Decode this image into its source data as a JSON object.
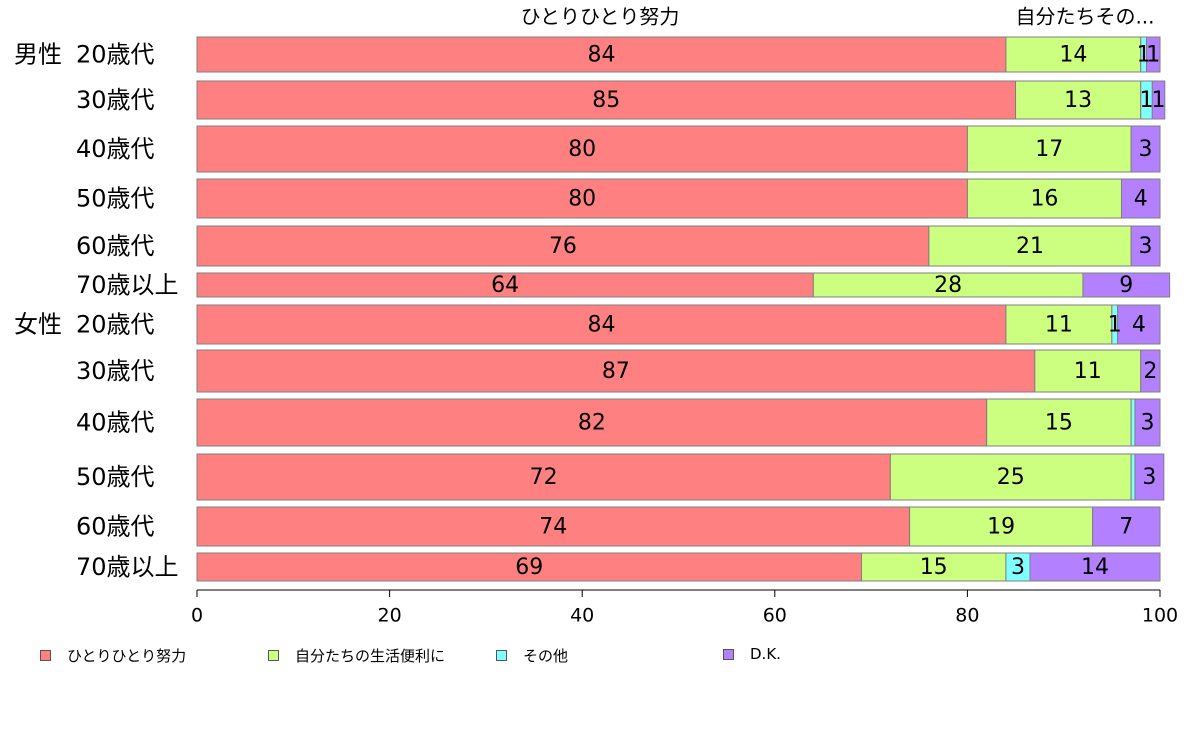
{
  "chart_data": {
    "type": "bar",
    "orientation": "horizontal",
    "stacked": true,
    "title": "",
    "xlabel": "",
    "ylabel": "",
    "xlim": [
      0,
      100
    ],
    "xticks": [
      0,
      20,
      40,
      60,
      80,
      100
    ],
    "grid": false,
    "legend_position": "bottom",
    "column_headers": [
      "ひとりひとり努力",
      "自分たちその..."
    ],
    "groups": [
      {
        "label": "男性",
        "start_index": 0
      },
      {
        "label": "女性",
        "start_index": 6
      }
    ],
    "categories": [
      "20歳代",
      "30歳代",
      "40歳代",
      "50歳代",
      "60歳代",
      "70歳以上",
      "20歳代",
      "30歳代",
      "40歳代",
      "50歳代",
      "60歳代",
      "70歳以上"
    ],
    "series": [
      {
        "name": "ひとりひとり努力",
        "color": "#ff8080",
        "values": [
          84,
          85,
          80,
          80,
          76,
          64,
          84,
          87,
          82,
          72,
          74,
          69
        ]
      },
      {
        "name": "自分たちの生活便利に",
        "color": "#ccff80",
        "values": [
          14,
          13,
          17,
          16,
          21,
          28,
          11,
          11,
          15,
          25,
          19,
          15
        ]
      },
      {
        "name": "その他",
        "color": "#80ffff",
        "values": [
          0.6,
          1.2,
          0,
          0,
          0,
          0,
          0.6,
          0,
          0.4,
          0.4,
          0,
          2.5
        ]
      },
      {
        "name": "D.K.",
        "color": "#b380ff",
        "values": [
          1.4,
          1.3,
          3,
          4,
          3,
          9,
          4.4,
          2,
          2.6,
          3,
          7,
          13.5
        ]
      }
    ],
    "data_labels": [
      [
        "84",
        "14",
        "1",
        "1"
      ],
      [
        "85",
        "13",
        "1",
        "1"
      ],
      [
        "80",
        "17",
        "",
        "3"
      ],
      [
        "80",
        "16",
        "",
        "4"
      ],
      [
        "76",
        "21",
        "",
        "3"
      ],
      [
        "64",
        "28",
        "",
        "9"
      ],
      [
        "84",
        "11",
        "1",
        "4"
      ],
      [
        "87",
        "11",
        "",
        "2"
      ],
      [
        "82",
        "15",
        "",
        "3"
      ],
      [
        "72",
        "25",
        "",
        "3"
      ],
      [
        "74",
        "19",
        "",
        "7"
      ],
      [
        "69",
        "15",
        "3",
        "14"
      ]
    ]
  }
}
